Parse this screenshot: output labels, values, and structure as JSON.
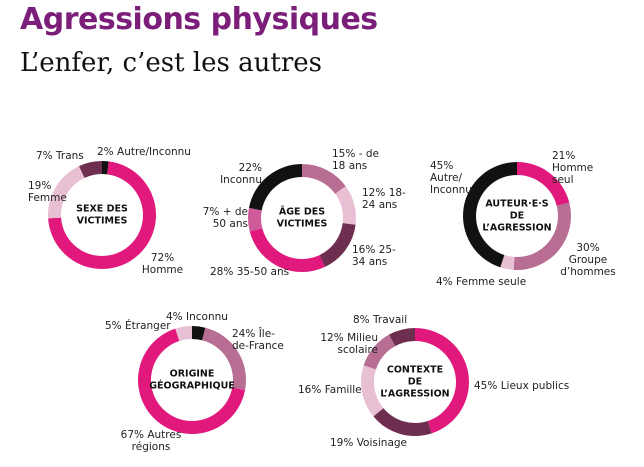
{
  "title": "Agressions physiques",
  "subtitle": "L’enfer, c’est les autres",
  "chart_data": [
    {
      "type": "pie",
      "donut": true,
      "title": [
        "SEXE DES",
        "VICTIMES"
      ],
      "categories": [
        "Autre/Inconnu",
        "Homme",
        "Femme",
        "Trans"
      ],
      "values": [
        2,
        72,
        19,
        7
      ],
      "value_labels": [
        "2%",
        "72%",
        "19%",
        "7%"
      ],
      "colors": [
        "#111111",
        "#e2197c",
        "#e9bfd4",
        "#6e2e50"
      ]
    },
    {
      "type": "pie",
      "donut": true,
      "title": [
        "ÂGE DES",
        "VICTIMES"
      ],
      "categories": [
        "- de 18 ans",
        "18-24 ans",
        "25-34 ans",
        "35-50 ans",
        "+ de 50 ans",
        "Inconnu"
      ],
      "values": [
        15,
        12,
        16,
        28,
        7,
        22
      ],
      "value_labels": [
        "15%",
        "12%",
        "16%",
        "28%",
        "7%",
        "22%"
      ],
      "colors": [
        "#b86d93",
        "#e9bfd4",
        "#6e2e50",
        "#e2197c",
        "#cf5a9a",
        "#111111"
      ]
    },
    {
      "type": "pie",
      "donut": true,
      "title": [
        "AUTEUR·E·S",
        "DE",
        "L’AGRESSION"
      ],
      "categories": [
        "Homme seul",
        "Groupe d’hommes",
        "Femme seule",
        "Autre/ Inconnu"
      ],
      "values": [
        21,
        30,
        4,
        45
      ],
      "value_labels": [
        "21%",
        "30%",
        "4%",
        "45%"
      ],
      "colors": [
        "#e2197c",
        "#b86d93",
        "#e9bfd4",
        "#111111"
      ]
    },
    {
      "type": "pie",
      "donut": true,
      "title": [
        "ORIGINE",
        "GÉOGRAPHIQUE"
      ],
      "categories": [
        "Inconnu",
        "Île-de-France",
        "Autres régions",
        "Étranger"
      ],
      "values": [
        4,
        24,
        67,
        5
      ],
      "value_labels": [
        "4%",
        "24%",
        "67%",
        "5%"
      ],
      "colors": [
        "#111111",
        "#b86d93",
        "#e2197c",
        "#e9bfd4"
      ]
    },
    {
      "type": "pie",
      "donut": true,
      "title": [
        "CONTEXTE",
        "DE",
        "L’AGRESSION"
      ],
      "categories": [
        "Lieux publics",
        "Voisinage",
        "Famille",
        "Milieu scolaire",
        "Travail"
      ],
      "values": [
        45,
        19,
        16,
        12,
        8
      ],
      "value_labels": [
        "45%",
        "19%",
        "16%",
        "12%",
        "8%"
      ],
      "colors": [
        "#e2197c",
        "#6e2e50",
        "#e9bfd4",
        "#b86d93",
        "#6e2e50"
      ]
    }
  ]
}
